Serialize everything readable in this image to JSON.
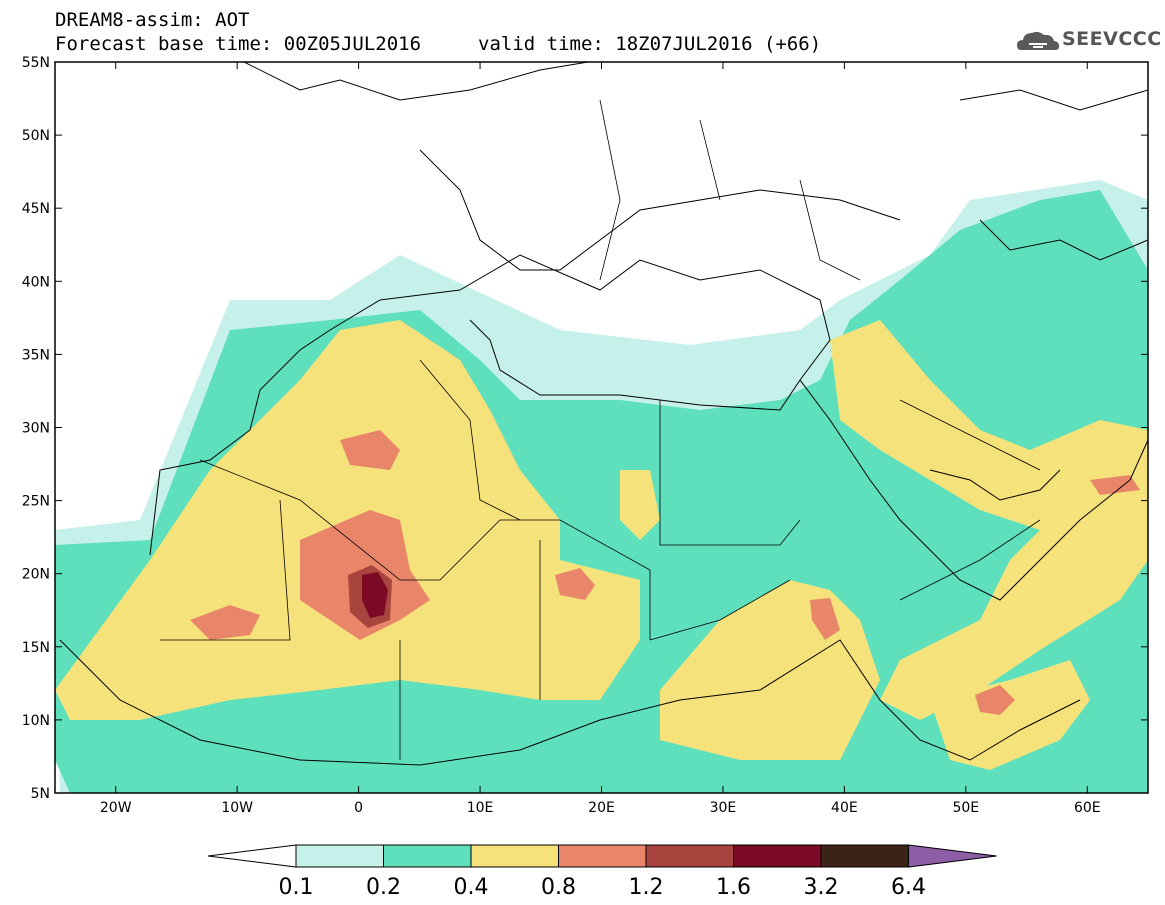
{
  "header": {
    "title_line1": "DREAM8-assim: AOT",
    "title_line2": "Forecast base time: 00Z05JUL2016",
    "valid_time": "valid time: 18Z07JUL2016 (+66)",
    "logo_text": "SEEVCCC",
    "logo_icon": "cloud-icon"
  },
  "map": {
    "lon_range": [
      -25,
      65
    ],
    "lat_range": [
      5,
      55
    ],
    "lat_labels": [
      "55N",
      "50N",
      "45N",
      "40N",
      "35N",
      "30N",
      "25N",
      "20N",
      "15N",
      "10N",
      "5N"
    ],
    "lon_labels": [
      "20W",
      "10W",
      "0",
      "10E",
      "20E",
      "30E",
      "40E",
      "50E",
      "60E"
    ]
  },
  "legend": {
    "levels": [
      "0.1",
      "0.2",
      "0.4",
      "0.8",
      "1.2",
      "1.6",
      "3.2",
      "6.4"
    ],
    "colors": {
      "below": "#ffffff",
      "c1": "#c6f0ea",
      "c2": "#5ee0bd",
      "c3": "#f6e27a",
      "c4": "#e9866a",
      "c5": "#a8453f",
      "c6": "#7d0a25",
      "c7": "#3b2415",
      "above": "#8d5ea5"
    }
  }
}
